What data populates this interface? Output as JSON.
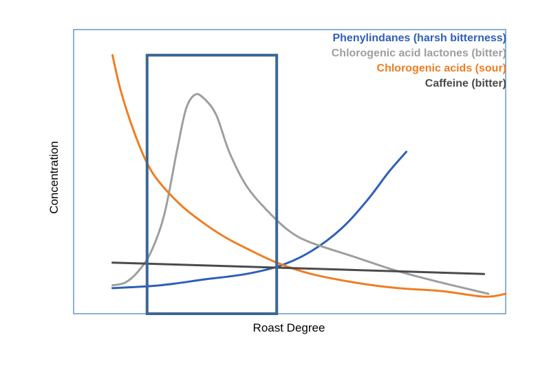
{
  "chart_data": {
    "type": "line",
    "xlabel": "Roast Degree",
    "ylabel": "Concentration",
    "xlim": [
      0,
      100
    ],
    "ylim": [
      0,
      100
    ],
    "grid": false,
    "axis_ticks": false,
    "legend_position": "top-right",
    "highlight_region": {
      "x": [
        17,
        47
      ],
      "y": [
        0,
        91
      ],
      "color": "#3b6794"
    },
    "series": [
      {
        "name": "Phenylindanes (harsh bitterness)",
        "color": "#2e5fb8",
        "x": [
          9,
          20,
          30,
          40,
          48,
          55,
          62,
          68,
          73,
          77
        ],
        "y": [
          9,
          10,
          12,
          14,
          17,
          22,
          30,
          40,
          50,
          57
        ]
      },
      {
        "name": "Chlorogenic acid lactones (bitter)",
        "color": "#9e9e9e",
        "x": [
          9,
          12,
          15,
          18,
          21,
          24,
          26,
          28,
          30,
          33,
          36,
          40,
          45,
          50,
          55,
          65,
          75,
          85,
          96
        ],
        "y": [
          10,
          11,
          15,
          22,
          35,
          58,
          72,
          77,
          76,
          70,
          57,
          45,
          36,
          29,
          25,
          20,
          15,
          11,
          7
        ]
      },
      {
        "name": "Chlorogenic acids (sour)",
        "color": "#f07d22",
        "x": [
          9,
          11,
          14,
          17,
          20,
          25,
          30,
          35,
          40,
          47,
          55,
          65,
          75,
          85,
          95,
          100
        ],
        "y": [
          91,
          78,
          64,
          53,
          46,
          38,
          32,
          27,
          23,
          18,
          14,
          11,
          9,
          8,
          6,
          7
        ]
      },
      {
        "name": "Caffeine (bitter)",
        "color": "#4a4a4a",
        "x": [
          9,
          95
        ],
        "y": [
          18,
          14
        ]
      }
    ]
  }
}
